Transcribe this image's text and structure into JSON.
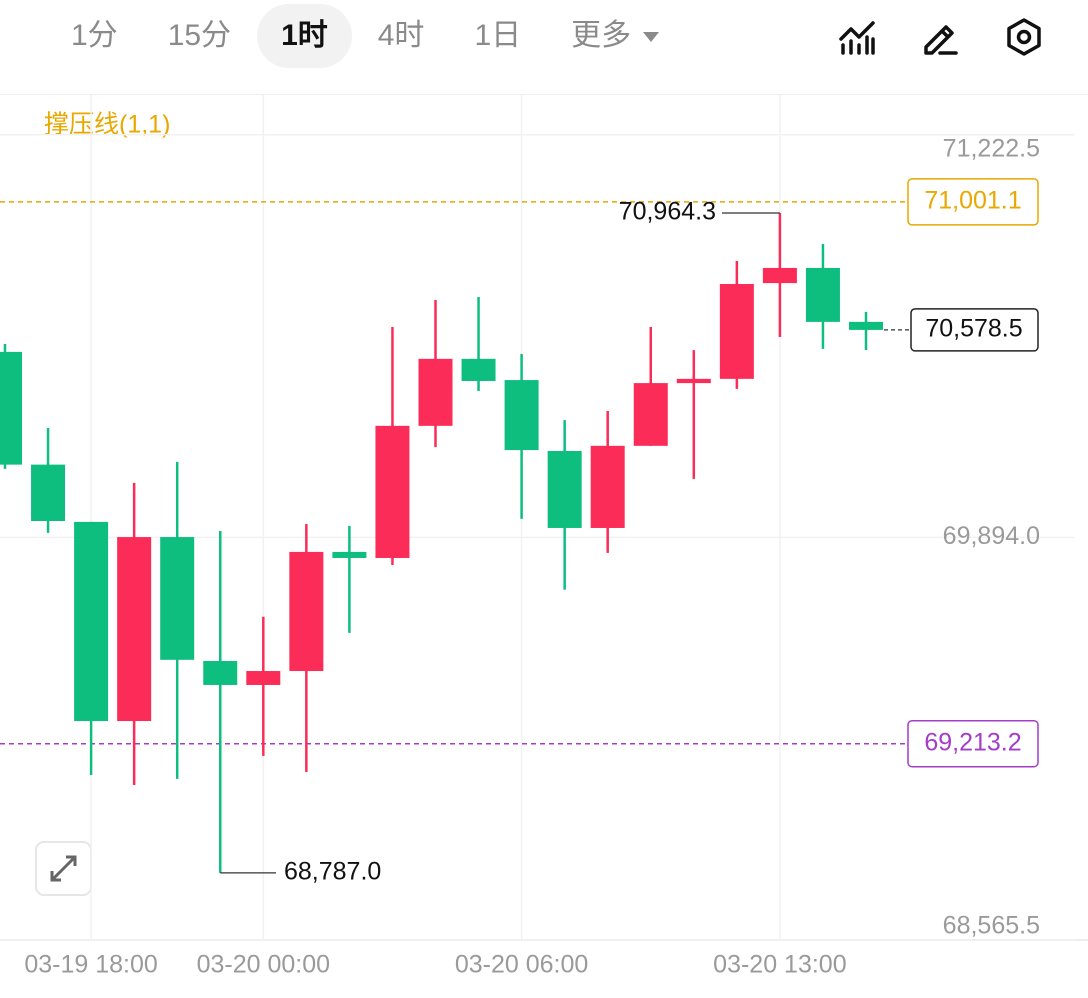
{
  "tabs": {
    "items": [
      "1分",
      "15分",
      "1时",
      "4时",
      "1日",
      "更多"
    ],
    "active": 2
  },
  "chart_data": {
    "type": "candlestick",
    "indicator": "撑压线(1,1)",
    "categories": [
      null,
      null,
      "03-19 18:00",
      null,
      null,
      null,
      "03-20 00:00",
      null,
      null,
      null,
      null,
      null,
      "03-20 06:00",
      null,
      null,
      null,
      null,
      null,
      "03-20 13:00",
      null,
      null
    ],
    "open": [
      70506,
      70134,
      69945,
      69288,
      69895,
      69486,
      69407,
      69453,
      69846,
      69826,
      70262,
      70483,
      70413,
      70179,
      69925,
      70196,
      70403,
      70417,
      70733,
      70783,
      70605
    ],
    "high": [
      70532,
      70255,
      69945,
      70074,
      70143,
      69915,
      69632,
      69938,
      69932,
      70588,
      70677,
      70687,
      70499,
      70281,
      70311,
      70588,
      70512,
      70806,
      70964.3,
      70862,
      70638
    ],
    "low": [
      70120,
      69909,
      69110,
      69077,
      69097,
      68787,
      69173,
      69120,
      69579,
      69803,
      70192,
      70377,
      69955,
      69721,
      69843,
      70196,
      70087,
      70384,
      70555,
      70516,
      70512
    ],
    "close": [
      70134,
      69948,
      69288,
      69895,
      69490,
      69407,
      69453,
      69846,
      69826,
      70262,
      70483,
      70410,
      70182,
      69925,
      70196,
      70403,
      70417,
      70730,
      70783,
      70605,
      70578.5
    ],
    "up_color": "#fb2c57",
    "down_color": "#0dbe7f",
    "ylim": [
      68565.5,
      71353.6
    ],
    "yticks": [
      {
        "value": 71222.5,
        "label": "71,222.5"
      },
      {
        "value": 69894.0,
        "label": "69,894.0"
      },
      {
        "value": 68565.5,
        "label": "68,565.5"
      }
    ],
    "grid": true,
    "levels": [
      {
        "value": 71001.1,
        "label": "71,001.1",
        "color": "#e8a800"
      },
      {
        "value": 69213.2,
        "label": "69,213.2",
        "color": "#a43cc9"
      }
    ],
    "last_price": {
      "value": 70578.5,
      "label": "70,578.5"
    },
    "high_mark": {
      "value": 70964.3,
      "label": "70,964.3"
    },
    "low_mark": {
      "value": 68787.0,
      "label": "68,787.0"
    }
  }
}
